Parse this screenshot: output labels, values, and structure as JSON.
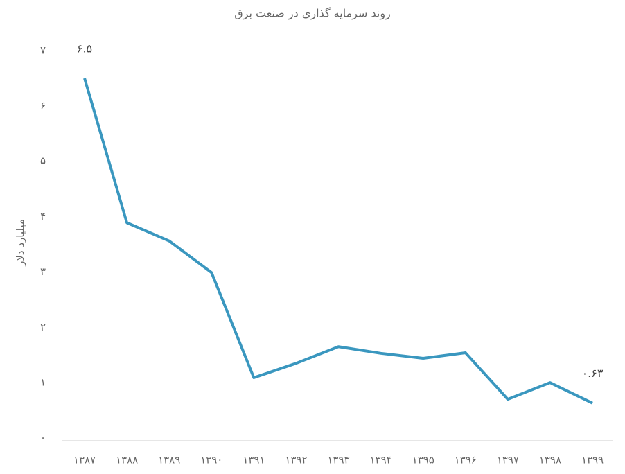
{
  "chart_data": {
    "type": "line",
    "title": "روند سرمایه گذاری در صنعت برق",
    "y_label": "میلیارد دلار",
    "categories": [
      "۱۳۸۷",
      "۱۳۸۸",
      "۱۳۸۹",
      "۱۳۹۰",
      "۱۳۹۱",
      "۱۳۹۲",
      "۱۳۹۳",
      "۱۳۹۴",
      "۱۳۹۵",
      "۱۳۹۶",
      "۱۳۹۷",
      "۱۳۹۸",
      "۱۳۹۹"
    ],
    "series": [
      {
        "name": "سرمایه گذاری",
        "color": "#3a97bf",
        "values": [
          6.5,
          3.89,
          3.56,
          2.99,
          1.09,
          1.35,
          1.65,
          1.53,
          1.44,
          1.54,
          0.7,
          1.0,
          0.63
        ],
        "value_labels": [
          "۶.۵",
          null,
          null,
          null,
          null,
          null,
          null,
          null,
          null,
          null,
          null,
          null,
          "۰.۶۳"
        ]
      }
    ],
    "ylim": [
      0,
      7
    ],
    "yticks": [
      {
        "value": 0,
        "label": "۰"
      },
      {
        "value": 1,
        "label": "۱"
      },
      {
        "value": 2,
        "label": "۲"
      },
      {
        "value": 3,
        "label": "۳"
      },
      {
        "value": 4,
        "label": "۴"
      },
      {
        "value": 5,
        "label": "۵"
      },
      {
        "value": 6,
        "label": "۶"
      },
      {
        "value": 7,
        "label": "۷"
      }
    ],
    "grid": false
  }
}
